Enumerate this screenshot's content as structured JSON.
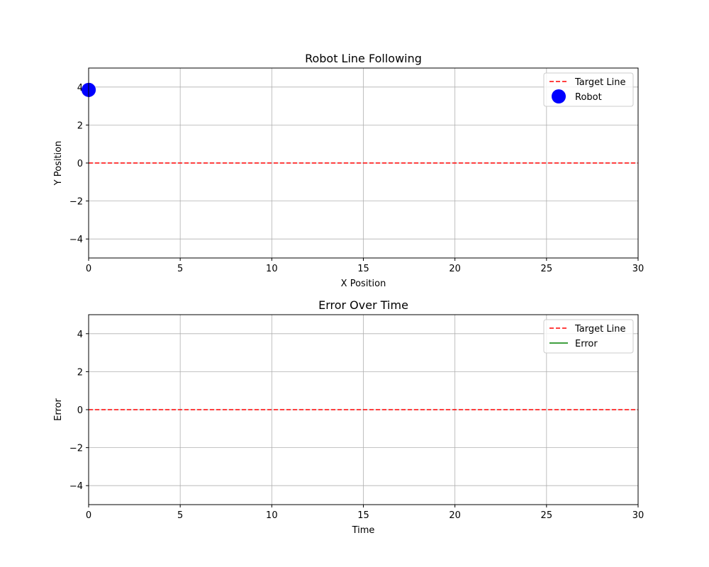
{
  "chart_data": [
    {
      "type": "line",
      "title": "Robot Line Following",
      "xlabel": "X Position",
      "ylabel": "Y Position",
      "xlim": [
        0,
        30
      ],
      "ylim": [
        -5,
        5
      ],
      "xticks": [
        "0",
        "5",
        "10",
        "15",
        "20",
        "25",
        "30"
      ],
      "yticks": [
        "−4",
        "−2",
        "0",
        "2",
        "4"
      ],
      "grid": true,
      "legend_position": "top-right",
      "series": [
        {
          "name": "Target Line",
          "style": "dashed",
          "color": "#ff0000",
          "x": [
            0,
            30
          ],
          "y": [
            0,
            0
          ]
        },
        {
          "name": "Robot",
          "style": "marker",
          "color": "#0000ff",
          "x": [
            0
          ],
          "y": [
            3.85
          ]
        }
      ]
    },
    {
      "type": "line",
      "title": "Error Over Time",
      "xlabel": "Time",
      "ylabel": "Error",
      "xlim": [
        0,
        30
      ],
      "ylim": [
        -5,
        5
      ],
      "xticks": [
        "0",
        "5",
        "10",
        "15",
        "20",
        "25",
        "30"
      ],
      "yticks": [
        "−4",
        "−2",
        "0",
        "2",
        "4"
      ],
      "grid": true,
      "legend_position": "top-right",
      "series": [
        {
          "name": "Target Line",
          "style": "dashed",
          "color": "#ff0000",
          "x": [
            0,
            30
          ],
          "y": [
            0,
            0
          ]
        },
        {
          "name": "Error",
          "style": "solid",
          "color": "#008000",
          "x": [],
          "y": []
        }
      ]
    }
  ]
}
